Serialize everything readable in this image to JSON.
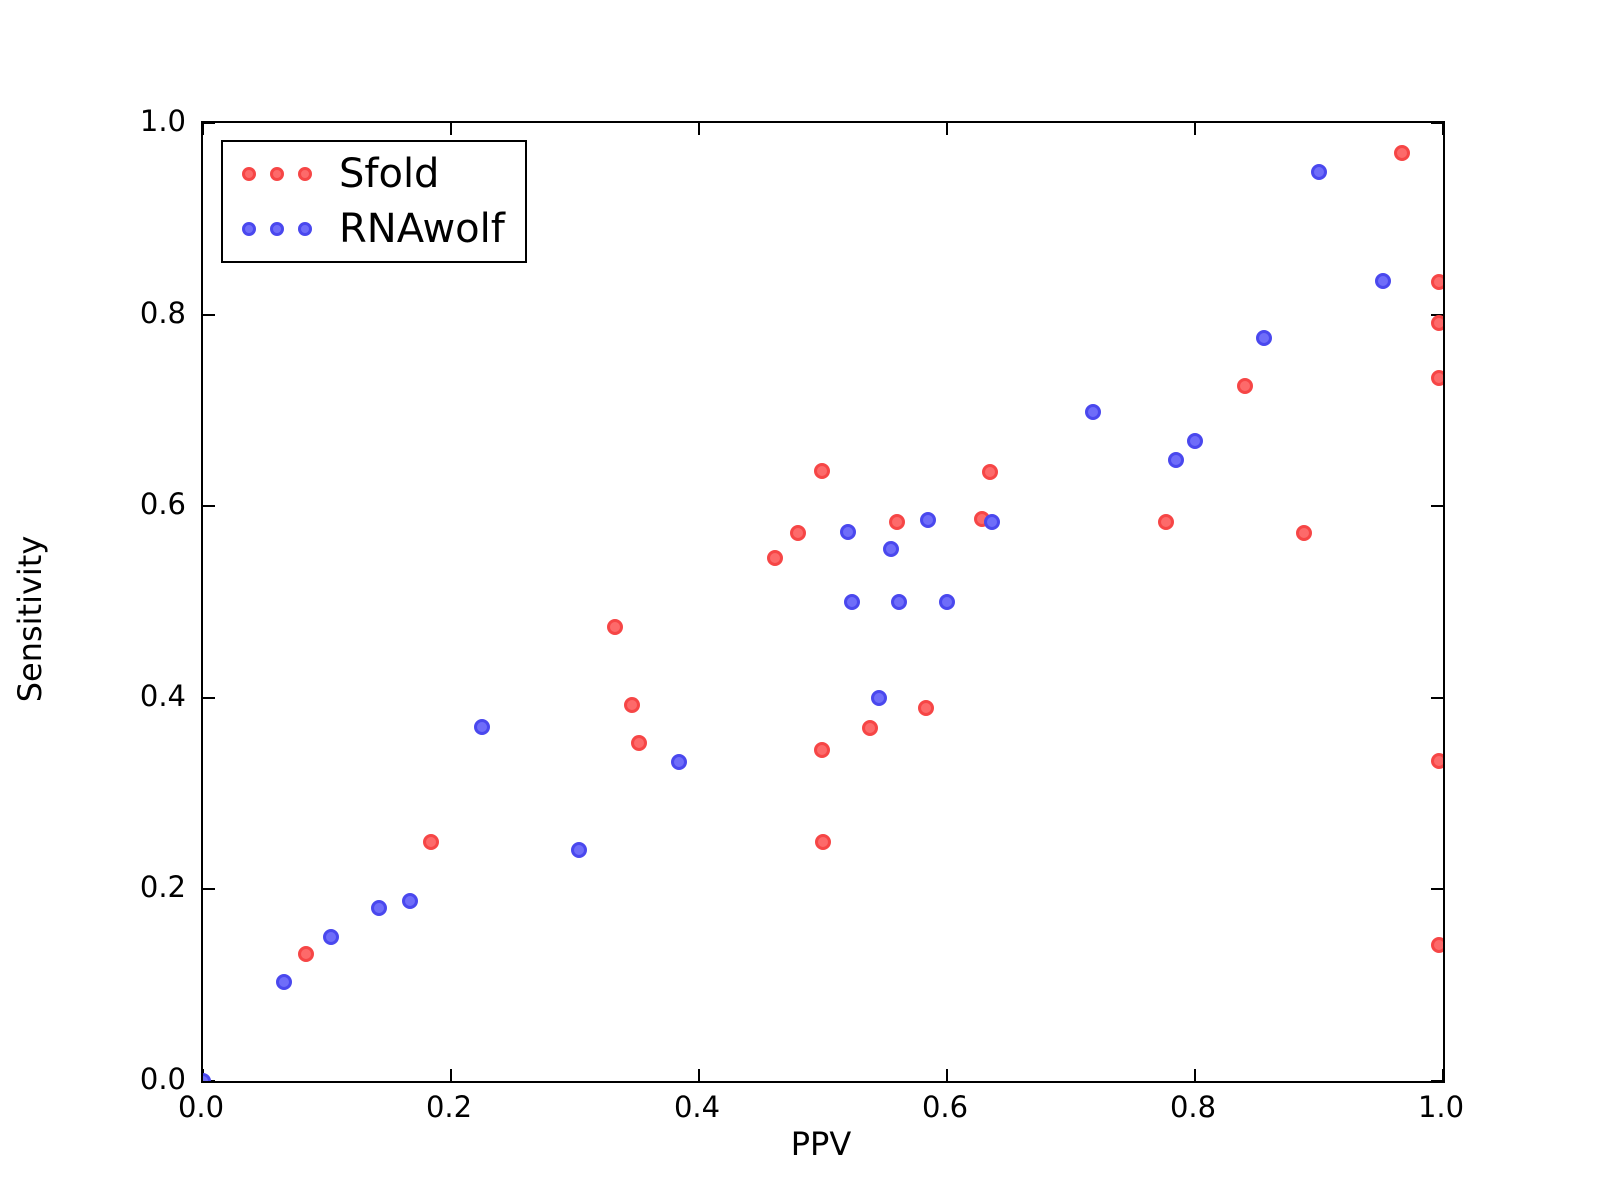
{
  "chart_data": {
    "type": "scatter",
    "title": "",
    "xlabel": "PPV",
    "ylabel": "Sensitivity",
    "xlim": [
      0.0,
      1.0
    ],
    "ylim": [
      0.0,
      1.0
    ],
    "grid": false,
    "legend_position": "upper left",
    "xticks": [
      "0.0",
      "0.2",
      "0.4",
      "0.6",
      "0.8",
      "1.0"
    ],
    "yticks": [
      "0.0",
      "0.2",
      "0.4",
      "0.6",
      "0.8",
      "1.0"
    ],
    "series": [
      {
        "name": "Sfold",
        "fill_color": "#fd6a6a",
        "edge_color": "#f64646",
        "points": [
          [
            0.083,
            0.133
          ],
          [
            0.184,
            0.249
          ],
          [
            0.332,
            0.474
          ],
          [
            0.346,
            0.393
          ],
          [
            0.352,
            0.353
          ],
          [
            0.461,
            0.546
          ],
          [
            0.48,
            0.572
          ],
          [
            0.499,
            0.637
          ],
          [
            0.499,
            0.345
          ],
          [
            0.5,
            0.249
          ],
          [
            0.538,
            0.368
          ],
          [
            0.56,
            0.584
          ],
          [
            0.583,
            0.389
          ],
          [
            0.628,
            0.587
          ],
          [
            0.635,
            0.636
          ],
          [
            0.777,
            0.584
          ],
          [
            0.84,
            0.725
          ],
          [
            0.888,
            0.572
          ],
          [
            0.967,
            0.969
          ],
          [
            0.997,
            0.834
          ],
          [
            0.997,
            0.791
          ],
          [
            0.997,
            0.734
          ],
          [
            0.997,
            0.334
          ],
          [
            0.997,
            0.142
          ]
        ]
      },
      {
        "name": "RNAwolf",
        "fill_color": "#6f6df9",
        "edge_color": "#4a48ee",
        "points": [
          [
            0.0,
            0.0
          ],
          [
            0.065,
            0.103
          ],
          [
            0.103,
            0.15
          ],
          [
            0.142,
            0.181
          ],
          [
            0.167,
            0.188
          ],
          [
            0.225,
            0.369
          ],
          [
            0.303,
            0.241
          ],
          [
            0.384,
            0.333
          ],
          [
            0.52,
            0.573
          ],
          [
            0.523,
            0.5
          ],
          [
            0.545,
            0.4
          ],
          [
            0.555,
            0.555
          ],
          [
            0.561,
            0.5
          ],
          [
            0.585,
            0.586
          ],
          [
            0.6,
            0.5
          ],
          [
            0.636,
            0.584
          ],
          [
            0.718,
            0.698
          ],
          [
            0.785,
            0.648
          ],
          [
            0.8,
            0.668
          ],
          [
            0.856,
            0.776
          ],
          [
            0.9,
            0.949
          ],
          [
            0.952,
            0.835
          ]
        ]
      }
    ]
  }
}
